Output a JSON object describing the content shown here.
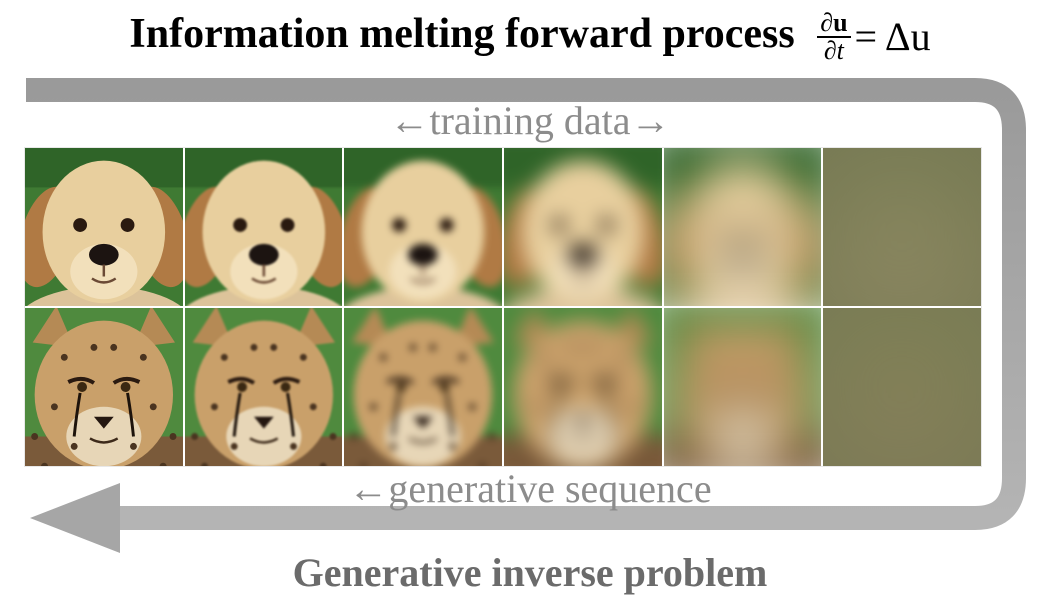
{
  "title": {
    "text": "Information melting forward process",
    "equation": {
      "numerator": "∂u",
      "denominator": "∂t",
      "rhs": "= Δu"
    }
  },
  "labels": {
    "top_arrow": "←training data→",
    "bottom_arrow": "←generative sequence"
  },
  "footer": "Generative inverse problem",
  "colors": {
    "arrow": "#a6a6a6",
    "label": "#8c8c8c",
    "footer": "#6b6b6b"
  },
  "grid": {
    "rows": [
      {
        "subject": "golden retriever puppy",
        "blur_levels": [
          0,
          1,
          4,
          10,
          22,
          60
        ]
      },
      {
        "subject": "cheetah",
        "blur_levels": [
          0,
          1,
          4,
          10,
          22,
          60
        ]
      }
    ]
  }
}
